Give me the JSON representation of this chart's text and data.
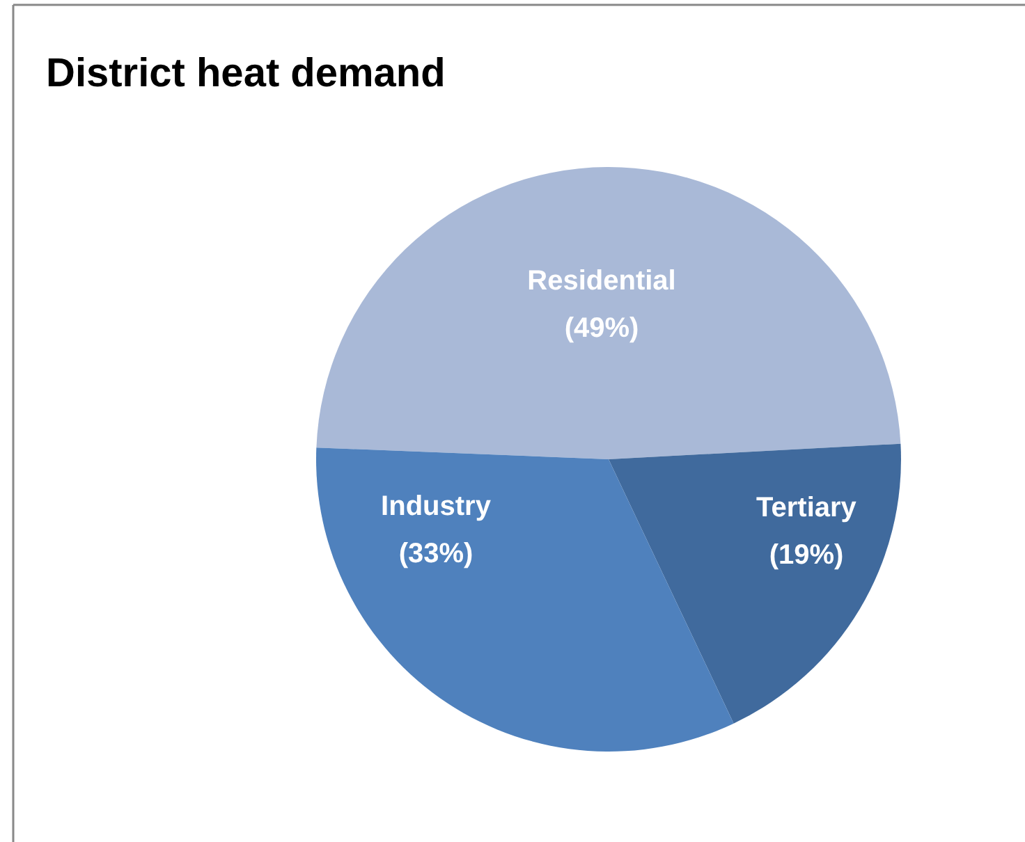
{
  "chart_data": {
    "type": "pie",
    "title": "District heat demand",
    "categories": [
      "Residential",
      "Tertiary",
      "Industry"
    ],
    "values": [
      49,
      19,
      33
    ],
    "colors": [
      "#a9b9d7",
      "#406a9d",
      "#4f81bd"
    ],
    "value_labels": [
      "(49%)",
      "(19%)",
      "(33%)"
    ]
  }
}
